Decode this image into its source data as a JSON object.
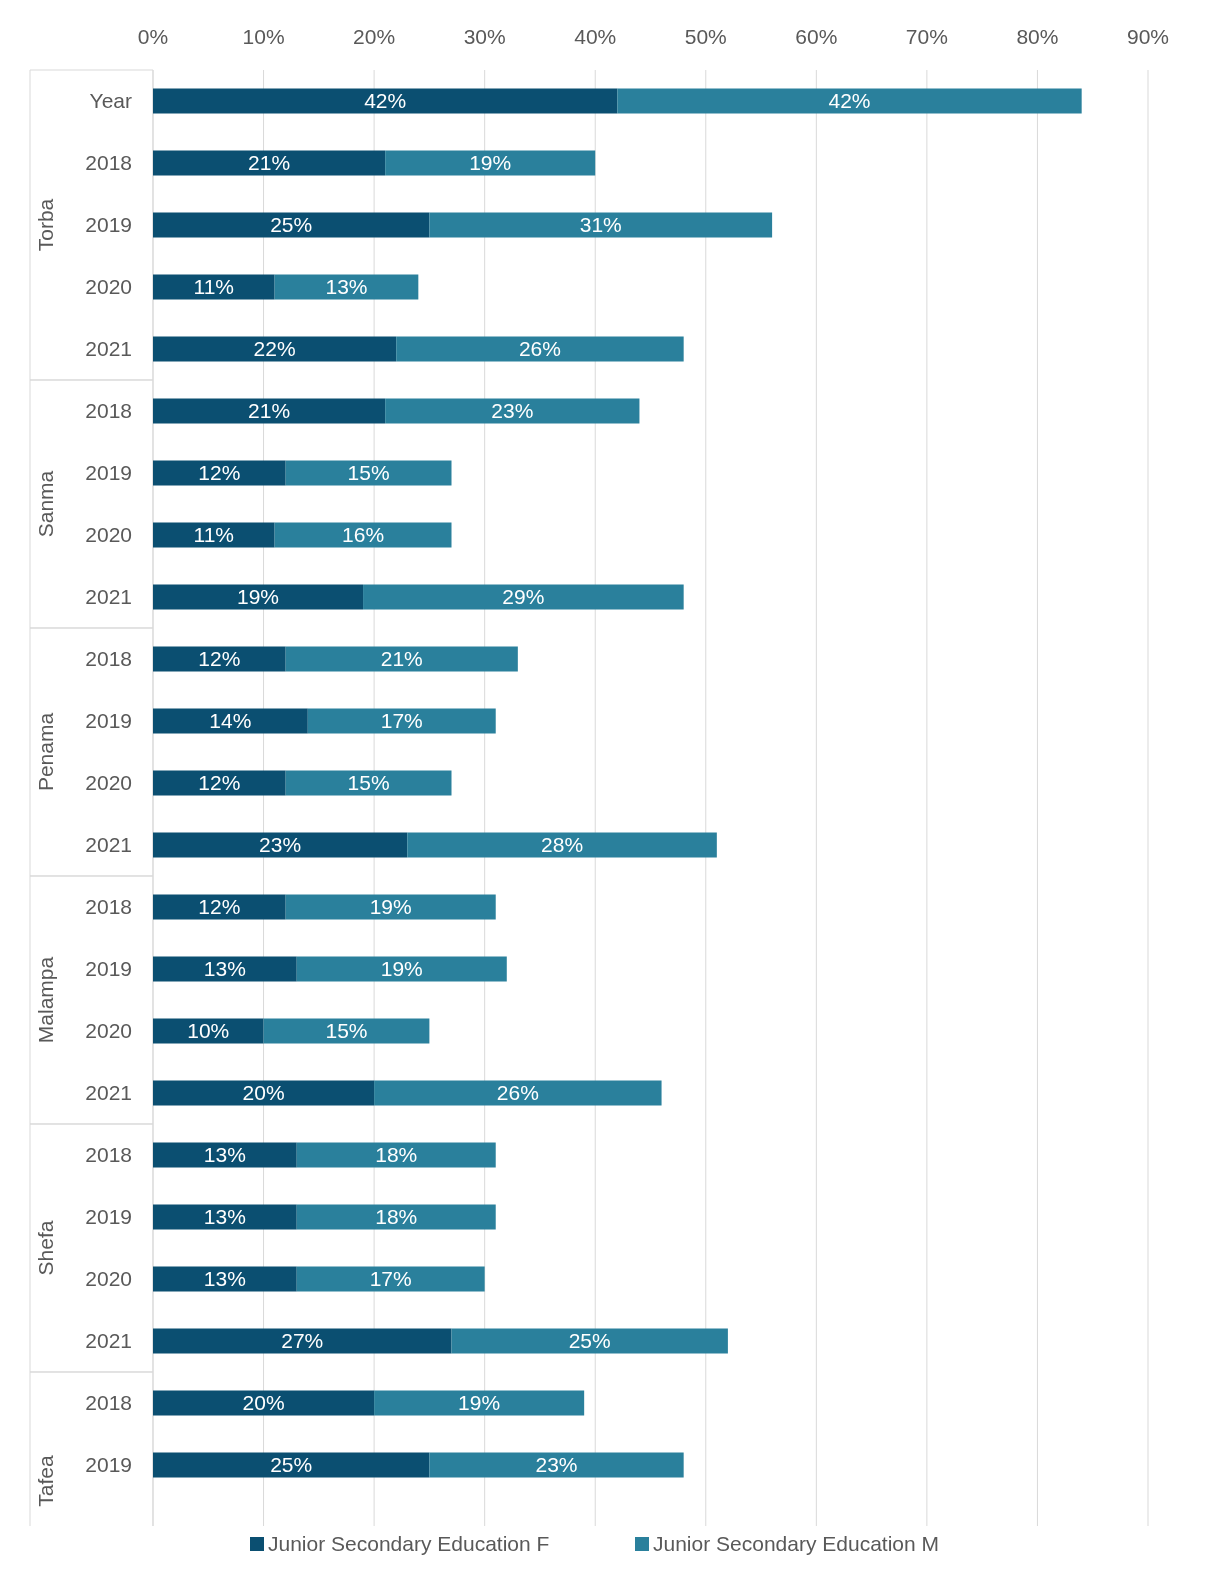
{
  "chart_data": {
    "type": "bar",
    "orientation": "horizontal",
    "stacked": true,
    "categories": [
      "Year",
      "2018",
      "2019",
      "2020",
      "2021",
      "2018",
      "2019",
      "2020",
      "2021",
      "2018",
      "2019",
      "2020",
      "2021",
      "2018",
      "2019",
      "2020",
      "2021",
      "2018",
      "2019",
      "2020",
      "2021",
      "2018",
      "2019"
    ],
    "series": [
      {
        "name": "Junior Secondary Education F",
        "color": "#0b4f71",
        "values": [
          42,
          21,
          25,
          11,
          22,
          21,
          12,
          11,
          19,
          12,
          14,
          12,
          23,
          12,
          13,
          10,
          20,
          13,
          13,
          13,
          27,
          20,
          25
        ],
        "value_labels": [
          "42%",
          "21%",
          "25%",
          "11%",
          "22%",
          "21%",
          "12%",
          "11%",
          "19%",
          "12%",
          "14%",
          "12%",
          "23%",
          "12%",
          "13%",
          "10%",
          "20%",
          "13%",
          "13%",
          "13%",
          "27%",
          "20%",
          "25%"
        ]
      },
      {
        "name": "Junior Secondary Education M",
        "color": "#2a809c",
        "values": [
          42,
          19,
          31,
          13,
          26,
          23,
          15,
          16,
          29,
          21,
          17,
          15,
          28,
          19,
          19,
          15,
          26,
          18,
          18,
          17,
          25,
          19,
          23
        ],
        "value_labels": [
          "42%",
          "19%",
          "31%",
          "13%",
          "26%",
          "23%",
          "15%",
          "16%",
          "29%",
          "21%",
          "17%",
          "15%",
          "28%",
          "19%",
          "19%",
          "15%",
          "26%",
          "18%",
          "18%",
          "17%",
          "25%",
          "19%",
          "23%"
        ]
      }
    ],
    "annotations": [
      "Torba",
      "Sanma",
      "Penama",
      "Malampa",
      "Shefa",
      "Tafea"
    ],
    "xlim": [
      0,
      90
    ],
    "xticks": [
      {
        "value": 0,
        "label": "0%"
      },
      {
        "value": 10,
        "label": "10%"
      },
      {
        "value": 20,
        "label": "20%"
      },
      {
        "value": 30,
        "label": "30%"
      },
      {
        "value": 40,
        "label": "40%"
      },
      {
        "value": 50,
        "label": "50%"
      },
      {
        "value": 60,
        "label": "60%"
      },
      {
        "value": 70,
        "label": "70%"
      },
      {
        "value": 80,
        "label": "80%"
      },
      {
        "value": 90,
        "label": "90%"
      }
    ],
    "grid": "x",
    "legend": "bottom"
  }
}
